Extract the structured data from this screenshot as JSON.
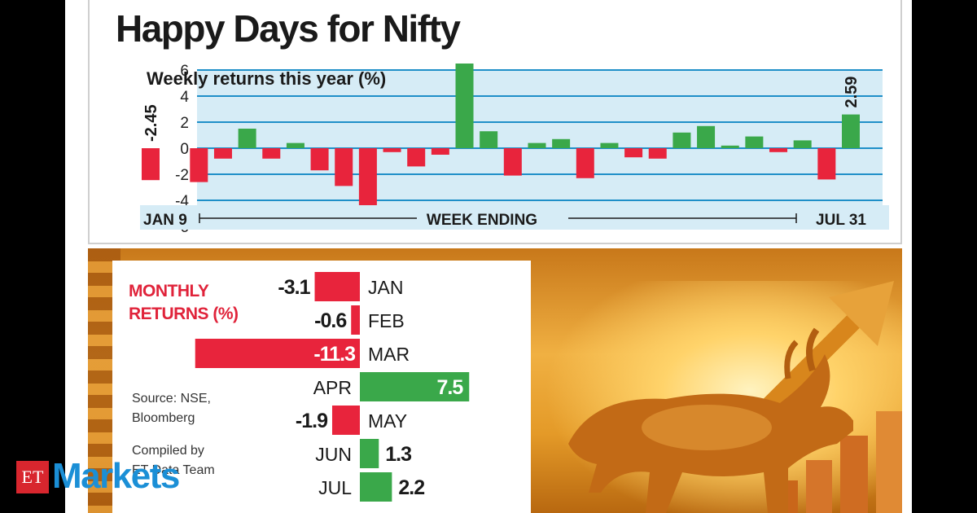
{
  "chart_data": [
    {
      "type": "bar",
      "title": "Happy Days for Nifty",
      "subtitle": "Weekly returns this year (%)",
      "xlabel": "WEEK ENDING",
      "x_start_label": "JAN 9",
      "x_end_label": "JUL 31",
      "ylim": [
        -6,
        6
      ],
      "yticks": [
        "6",
        "4",
        "2",
        "0",
        "-2",
        "-4",
        "-6"
      ],
      "values": [
        -2.45,
        0,
        -2.6,
        -0.8,
        1.5,
        -0.8,
        0.4,
        -1.7,
        -2.9,
        -5.6,
        -0.3,
        -1.4,
        -0.5,
        6.5,
        1.3,
        -2.1,
        0.4,
        0.7,
        -2.3,
        0.4,
        -0.7,
        -0.8,
        1.2,
        1.7,
        0.2,
        0.9,
        -0.3,
        0.6,
        -2.4,
        2.59
      ],
      "data_labels": [
        {
          "index": 0,
          "text": "-2.45"
        },
        {
          "index": 29,
          "text": "2.59"
        }
      ],
      "colors": {
        "positive": "#3aa84a",
        "negative": "#e8243c",
        "band": "#d6ecf6",
        "grid": "#1f8fc8"
      }
    },
    {
      "type": "bar",
      "orientation": "horizontal",
      "title": "MONTHLY RETURNS (%)",
      "categories": [
        "JAN",
        "FEB",
        "MAR",
        "APR",
        "MAY",
        "JUN",
        "JUL"
      ],
      "values": [
        -3.1,
        -0.6,
        -11.3,
        7.5,
        -1.9,
        1.3,
        2.2
      ],
      "value_labels": [
        "-3.1",
        "-0.6",
        "-11.3",
        "7.5",
        "-1.9",
        "1.3",
        "2.2"
      ],
      "colors": {
        "positive": "#3aa84a",
        "negative": "#e8243c"
      }
    }
  ],
  "source_text": [
    "Source: NSE,",
    "Bloomberg"
  ],
  "compiled_text": [
    "Compiled by",
    "ET Data Team"
  ],
  "logo": {
    "et": "ET",
    "markets": "Markets",
    "brand_color": "#1b8fd6"
  }
}
